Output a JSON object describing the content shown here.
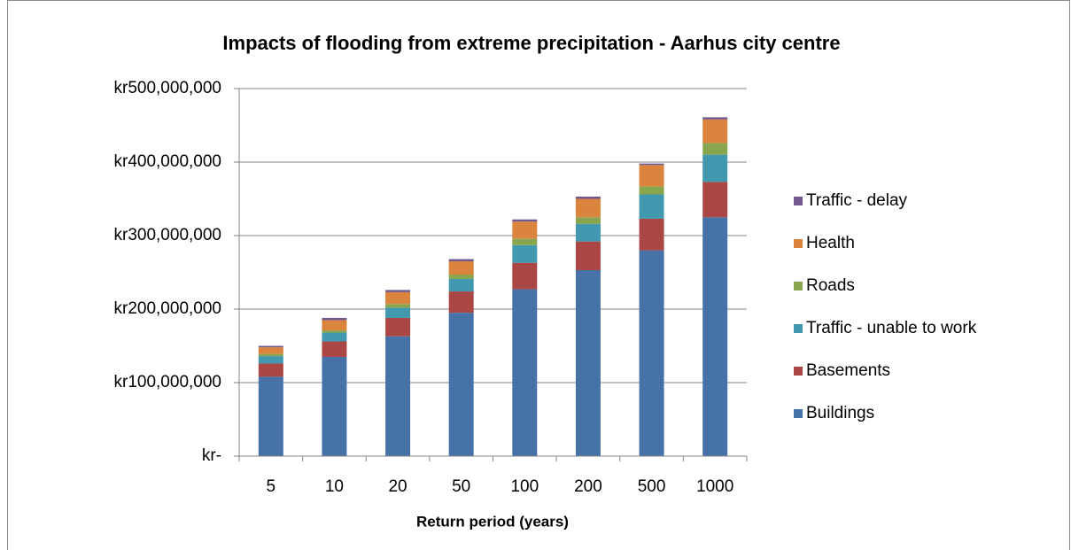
{
  "chart_data": {
    "type": "stacked_bar",
    "title": "Impacts of flooding from extreme precipitation - Aarhus city centre",
    "x_label": "Return period (years)",
    "categories": [
      "5",
      "10",
      "20",
      "50",
      "100",
      "200",
      "500",
      "1000"
    ],
    "series": [
      {
        "name": "Buildings",
        "color": "#4672a8",
        "values": [
          108000000,
          135000000,
          163000000,
          195000000,
          227000000,
          253000000,
          280000000,
          325000000
        ]
      },
      {
        "name": "Basements",
        "color": "#aa4643",
        "values": [
          18000000,
          21000000,
          25000000,
          29000000,
          36000000,
          39000000,
          43000000,
          48000000
        ]
      },
      {
        "name": "Traffic - unable to work",
        "color": "#4198af",
        "values": [
          10000000,
          12000000,
          14000000,
          17000000,
          24000000,
          24000000,
          33000000,
          37000000
        ]
      },
      {
        "name": "Roads",
        "color": "#89a54e",
        "values": [
          3000000,
          3000000,
          5000000,
          6000000,
          9000000,
          9000000,
          11000000,
          16000000
        ]
      },
      {
        "name": "Health",
        "color": "#db843d",
        "values": [
          9000000,
          14000000,
          16000000,
          18000000,
          23000000,
          25000000,
          29000000,
          32000000
        ]
      },
      {
        "name": "Traffic - delay",
        "color": "#71588f",
        "values": [
          2000000,
          3000000,
          3000000,
          3000000,
          3000000,
          3000000,
          2000000,
          3000000
        ]
      }
    ],
    "ylim": [
      0,
      500000000
    ],
    "yticks": [
      {
        "value": 0,
        "label": "kr-"
      },
      {
        "value": 100000000,
        "label": "kr100,000,000"
      },
      {
        "value": 200000000,
        "label": "kr200,000,000"
      },
      {
        "value": 300000000,
        "label": "kr300,000,000"
      },
      {
        "value": 400000000,
        "label": "kr400,000,000"
      },
      {
        "value": 500000000,
        "label": "kr500,000,000"
      }
    ],
    "grid": true,
    "legend": "right"
  }
}
